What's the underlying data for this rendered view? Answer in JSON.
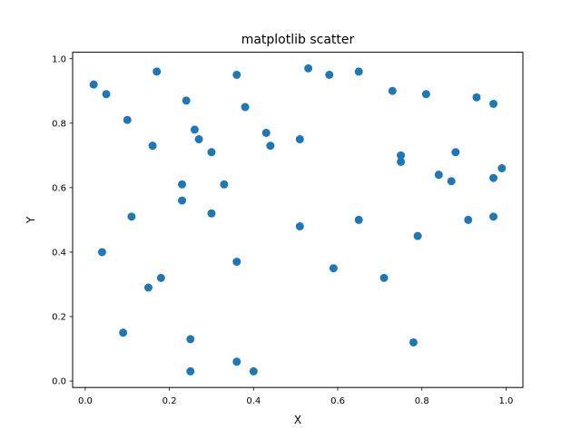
{
  "chart_data": {
    "type": "scatter",
    "title": "matplotlib scatter",
    "xlabel": "X",
    "ylabel": "Y",
    "xlim": [
      -0.03,
      1.04
    ],
    "ylim": [
      -0.02,
      1.02
    ],
    "xticks": [
      0.0,
      0.2,
      0.4,
      0.6,
      0.8,
      1.0
    ],
    "xtick_labels": [
      "0.0",
      "0.2",
      "0.4",
      "0.6",
      "0.8",
      "1.0"
    ],
    "yticks": [
      0.0,
      0.2,
      0.4,
      0.6,
      0.8,
      1.0
    ],
    "ytick_labels": [
      "0.0",
      "0.2",
      "0.4",
      "0.6",
      "0.8",
      "1.0"
    ],
    "grid": false,
    "legend": "none",
    "marker_color": "#1f77b4",
    "points": [
      {
        "x": 0.02,
        "y": 0.92
      },
      {
        "x": 0.05,
        "y": 0.89
      },
      {
        "x": 0.17,
        "y": 0.96
      },
      {
        "x": 0.36,
        "y": 0.95
      },
      {
        "x": 0.53,
        "y": 0.97
      },
      {
        "x": 0.58,
        "y": 0.95
      },
      {
        "x": 0.65,
        "y": 0.96
      },
      {
        "x": 0.73,
        "y": 0.9
      },
      {
        "x": 0.81,
        "y": 0.89
      },
      {
        "x": 0.93,
        "y": 0.88
      },
      {
        "x": 0.97,
        "y": 0.86
      },
      {
        "x": 0.24,
        "y": 0.87
      },
      {
        "x": 0.38,
        "y": 0.85
      },
      {
        "x": 0.1,
        "y": 0.81
      },
      {
        "x": 0.26,
        "y": 0.78
      },
      {
        "x": 0.27,
        "y": 0.75
      },
      {
        "x": 0.16,
        "y": 0.73
      },
      {
        "x": 0.3,
        "y": 0.71
      },
      {
        "x": 0.43,
        "y": 0.77
      },
      {
        "x": 0.44,
        "y": 0.73
      },
      {
        "x": 0.51,
        "y": 0.75
      },
      {
        "x": 0.75,
        "y": 0.68
      },
      {
        "x": 0.75,
        "y": 0.7
      },
      {
        "x": 0.88,
        "y": 0.71
      },
      {
        "x": 0.84,
        "y": 0.64
      },
      {
        "x": 0.87,
        "y": 0.62
      },
      {
        "x": 0.97,
        "y": 0.63
      },
      {
        "x": 0.99,
        "y": 0.66
      },
      {
        "x": 0.23,
        "y": 0.61
      },
      {
        "x": 0.33,
        "y": 0.61
      },
      {
        "x": 0.23,
        "y": 0.56
      },
      {
        "x": 0.3,
        "y": 0.52
      },
      {
        "x": 0.11,
        "y": 0.51
      },
      {
        "x": 0.51,
        "y": 0.48
      },
      {
        "x": 0.65,
        "y": 0.5
      },
      {
        "x": 0.91,
        "y": 0.5
      },
      {
        "x": 0.97,
        "y": 0.51
      },
      {
        "x": 0.79,
        "y": 0.45
      },
      {
        "x": 0.04,
        "y": 0.4
      },
      {
        "x": 0.36,
        "y": 0.37
      },
      {
        "x": 0.59,
        "y": 0.35
      },
      {
        "x": 0.71,
        "y": 0.32
      },
      {
        "x": 0.18,
        "y": 0.32
      },
      {
        "x": 0.15,
        "y": 0.29
      },
      {
        "x": 0.09,
        "y": 0.15
      },
      {
        "x": 0.25,
        "y": 0.13
      },
      {
        "x": 0.78,
        "y": 0.12
      },
      {
        "x": 0.36,
        "y": 0.06
      },
      {
        "x": 0.25,
        "y": 0.03
      },
      {
        "x": 0.4,
        "y": 0.03
      }
    ]
  }
}
